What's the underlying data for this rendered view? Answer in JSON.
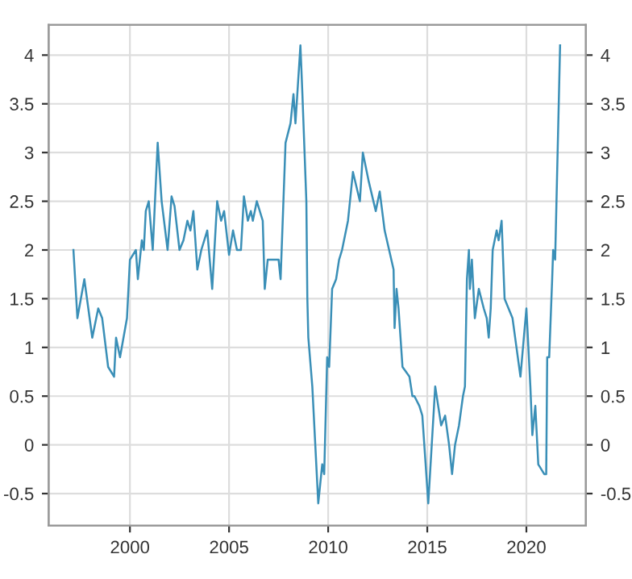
{
  "chart_data": {
    "type": "line",
    "xlim": [
      1995.9,
      2023.0
    ],
    "xticks": [
      2000,
      2005,
      2010,
      2015,
      2020
    ],
    "ylim": [
      -0.83,
      4.31
    ],
    "yticks": [
      -0.5,
      0,
      0.5,
      1,
      1.5,
      2,
      2.5,
      3,
      3.5,
      4
    ],
    "y2lim": [
      -0.83,
      4.31
    ],
    "y2ticks": [
      -0.5,
      0,
      0.5,
      1,
      1.5,
      2,
      2.5,
      3,
      3.5,
      4
    ],
    "grid": true,
    "legend": false,
    "marker": "none",
    "line_style": "solid",
    "series": [
      {
        "color": "#3a8fb7",
        "x": [
          1997.15,
          1997.35,
          1997.7,
          1998.1,
          1998.4,
          1998.6,
          1998.9,
          1999.2,
          1999.3,
          1999.5,
          1999.85,
          2000.0,
          2000.3,
          2000.4,
          2000.6,
          2000.7,
          2000.8,
          2000.95,
          2001.15,
          2001.4,
          2001.6,
          2001.9,
          2002.1,
          2002.25,
          2002.5,
          2002.7,
          2002.9,
          2003.05,
          2003.2,
          2003.4,
          2003.6,
          2003.9,
          2004.15,
          2004.4,
          2004.6,
          2004.75,
          2005.0,
          2005.2,
          2005.4,
          2005.6,
          2005.75,
          2005.95,
          2006.1,
          2006.2,
          2006.4,
          2006.7,
          2006.8,
          2006.95,
          2007.3,
          2007.5,
          2007.6,
          2007.85,
          2008.1,
          2008.25,
          2008.35,
          2008.6,
          2008.7,
          2008.9,
          2008.95,
          2009.0,
          2009.2,
          2009.35,
          2009.5,
          2009.7,
          2009.8,
          2009.95,
          2010.05,
          2010.2,
          2010.4,
          2010.55,
          2010.7,
          2011.0,
          2011.25,
          2011.6,
          2011.75,
          2012.05,
          2012.4,
          2012.6,
          2012.85,
          2013.3,
          2013.35,
          2013.45,
          2013.55,
          2013.75,
          2014.1,
          2014.25,
          2014.35,
          2014.6,
          2014.75,
          2015.05,
          2015.4,
          2015.55,
          2015.7,
          2015.9,
          2016.1,
          2016.25,
          2016.4,
          2016.6,
          2016.8,
          2016.9,
          2017.0,
          2017.1,
          2017.15,
          2017.25,
          2017.4,
          2017.6,
          2017.85,
          2018.0,
          2018.1,
          2018.2,
          2018.3,
          2018.5,
          2018.6,
          2018.75,
          2018.9,
          2019.1,
          2019.3,
          2019.5,
          2019.7,
          2020.0,
          2020.2,
          2020.3,
          2020.45,
          2020.6,
          2020.9,
          2021.0,
          2021.05,
          2021.15,
          2021.3,
          2021.35,
          2021.45,
          2021.7
        ],
        "values": [
          2.0,
          1.3,
          1.7,
          1.1,
          1.4,
          1.3,
          0.8,
          0.7,
          1.1,
          0.9,
          1.3,
          1.9,
          2.0,
          1.7,
          2.1,
          2.0,
          2.4,
          2.5,
          2.0,
          3.1,
          2.5,
          2.0,
          2.55,
          2.45,
          2.0,
          2.1,
          2.3,
          2.2,
          2.4,
          1.8,
          2.0,
          2.2,
          1.6,
          2.5,
          2.3,
          2.4,
          1.95,
          2.2,
          2.0,
          2.0,
          2.55,
          2.3,
          2.4,
          2.3,
          2.5,
          2.3,
          1.6,
          1.9,
          1.9,
          1.9,
          1.7,
          3.1,
          3.3,
          3.6,
          3.3,
          4.1,
          3.6,
          2.5,
          1.5,
          1.1,
          0.6,
          0.0,
          -0.6,
          -0.2,
          -0.3,
          0.9,
          0.8,
          1.6,
          1.7,
          1.9,
          2.0,
          2.3,
          2.8,
          2.5,
          3.0,
          2.7,
          2.4,
          2.6,
          2.2,
          1.8,
          1.2,
          1.6,
          1.4,
          0.8,
          0.7,
          0.5,
          0.5,
          0.4,
          0.3,
          -0.6,
          0.6,
          0.4,
          0.2,
          0.3,
          0.0,
          -0.3,
          0.0,
          0.2,
          0.5,
          0.6,
          1.7,
          2.0,
          1.6,
          1.9,
          1.3,
          1.6,
          1.4,
          1.3,
          1.1,
          1.4,
          2.0,
          2.2,
          2.1,
          2.3,
          1.5,
          1.4,
          1.3,
          1.0,
          0.7,
          1.4,
          0.6,
          0.1,
          0.4,
          -0.2,
          -0.3,
          -0.3,
          0.9,
          0.9,
          1.7,
          2.0,
          1.9,
          4.1
        ]
      }
    ]
  }
}
